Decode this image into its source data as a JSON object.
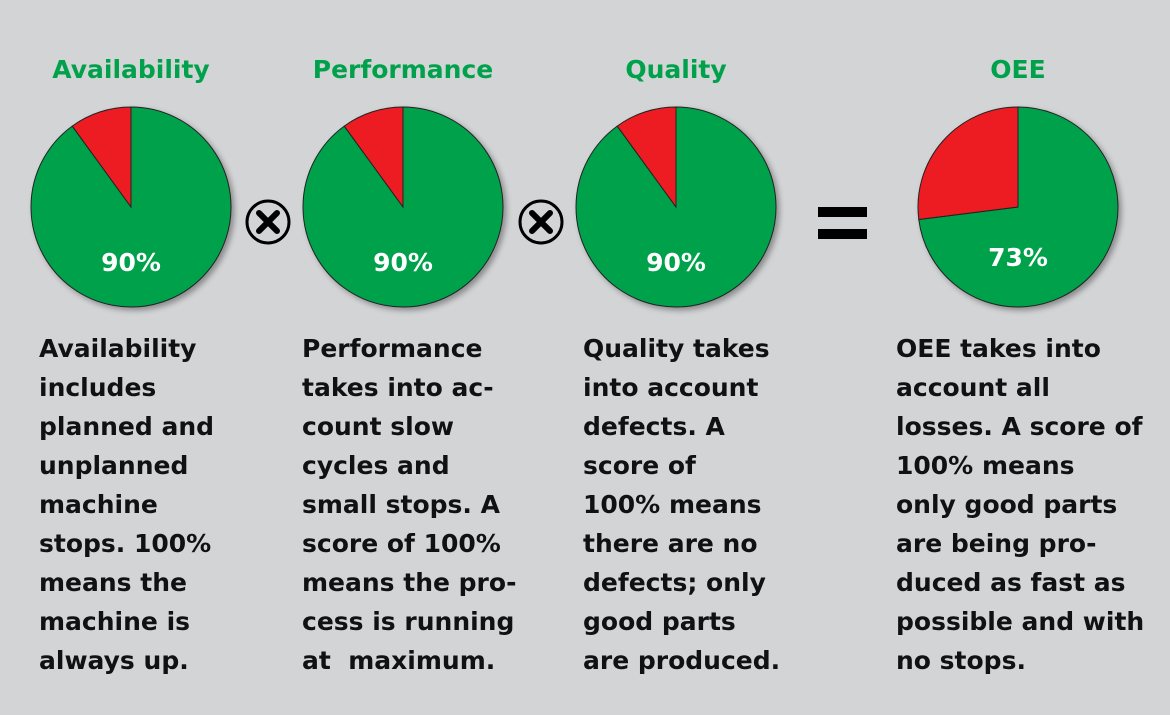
{
  "colors": {
    "good": "#00a14b",
    "loss": "#ed1c24",
    "background": "#d3d4d6",
    "title": "#00a14b"
  },
  "operators": [
    {
      "icon": "circled-times-icon"
    },
    {
      "icon": "circled-times-icon"
    },
    {
      "icon": "equals-icon"
    }
  ],
  "chart_data": [
    {
      "type": "pie",
      "title": "Availability",
      "categories": [
        "good",
        "loss"
      ],
      "values": [
        90,
        10
      ],
      "label": "90%"
    },
    {
      "type": "pie",
      "title": "Performance",
      "categories": [
        "good",
        "loss"
      ],
      "values": [
        90,
        10
      ],
      "label": "90%"
    },
    {
      "type": "pie",
      "title": "Quality",
      "categories": [
        "good",
        "loss"
      ],
      "values": [
        90,
        10
      ],
      "label": "90%"
    },
    {
      "type": "pie",
      "title": "OEE",
      "categories": [
        "good",
        "loss"
      ],
      "values": [
        73,
        27
      ],
      "label": "73%"
    }
  ],
  "descriptions": [
    [
      "Availability",
      "includes",
      "planned and",
      "unplanned",
      "machine",
      "stops. 100%",
      "means the",
      "machine is",
      "always up."
    ],
    [
      "Performance",
      "takes into ac-",
      "count slow",
      "cycles and",
      "small stops. A",
      "score of 100%",
      "means the pro-",
      "cess is running",
      "at  maximum."
    ],
    [
      "Quality takes",
      "into account",
      "defects. A",
      "score of",
      "100% means",
      "there are no",
      "defects; only",
      "good parts",
      "are produced."
    ],
    [
      "OEE takes into",
      "account all",
      "losses. A score of",
      "100% means",
      "only good parts",
      "are being pro-",
      "duced as fast as",
      "possible and with",
      "no stops."
    ]
  ]
}
